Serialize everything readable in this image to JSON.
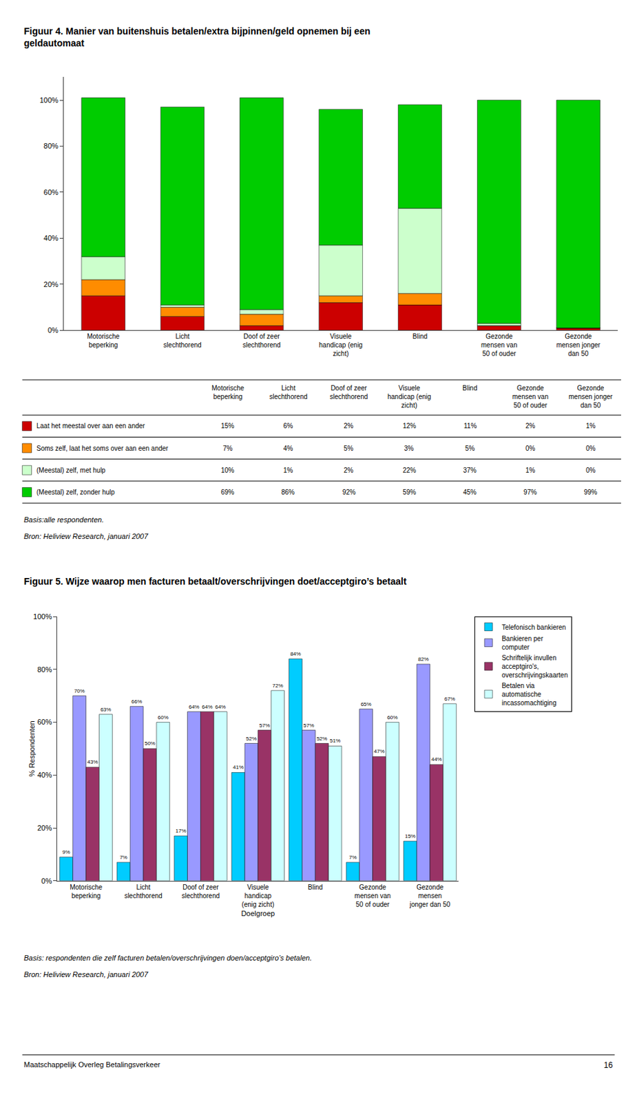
{
  "chart_data": [
    {
      "type": "bar",
      "title": "Figuur 4. Manier van buitenshuis betalen/extra bijpinnen/geld opnemen bij een\ngeldautomaat",
      "categories": [
        "Motorische\nbeperking",
        "Licht\nslechthorend",
        "Doof of zeer\nslechthorend",
        "Visuele\nhandicap (enig\nzicht)",
        "Blind",
        "Gezonde\nmensen van\n50 of ouder",
        "Gezonde\nmensen jonger\ndan 50"
      ],
      "series": [
        {
          "name": "Laat het meestal over aan een ander",
          "color": "#CC0000",
          "values": [
            15,
            6,
            2,
            12,
            11,
            2,
            1
          ],
          "value_labels": [
            "15%",
            "6%",
            "2%",
            "12%",
            "11%",
            "2%",
            "1%"
          ]
        },
        {
          "name": "Soms zelf, laat het soms over aan een ander",
          "color": "#FF8C00",
          "values": [
            7,
            4,
            5,
            3,
            5,
            0,
            0
          ],
          "value_labels": [
            "7%",
            "4%",
            "5%",
            "3%",
            "5%",
            "0%",
            "0%"
          ]
        },
        {
          "name": "(Meestal) zelf, met hulp",
          "color": "#CCFFCC",
          "values": [
            10,
            1,
            2,
            22,
            37,
            1,
            0
          ],
          "value_labels": [
            "10%",
            "1%",
            "2%",
            "22%",
            "37%",
            "1%",
            "0%"
          ]
        },
        {
          "name": "(Meestal) zelf, zonder hulp",
          "color": "#00CC00",
          "values": [
            69,
            86,
            92,
            59,
            45,
            97,
            99
          ],
          "value_labels": [
            "69%",
            "86%",
            "92%",
            "59%",
            "45%",
            "97%",
            "99%"
          ]
        }
      ],
      "stacked": true,
      "ylim": [
        0,
        110
      ],
      "yticks": [
        {
          "value": 0,
          "label": "0%"
        },
        {
          "value": 20,
          "label": "20%"
        },
        {
          "value": 40,
          "label": "40%"
        },
        {
          "value": 60,
          "label": "60%"
        },
        {
          "value": 80,
          "label": "80%"
        },
        {
          "value": 100,
          "label": "100%"
        }
      ],
      "grid": false,
      "annotations": [
        "Basis:alle respondenten.",
        "Bron: Heliview Research, januari 2007"
      ]
    },
    {
      "type": "bar",
      "title": "Figuur 5. Wijze waarop men facturen betaalt/overschrijvingen doet/acceptgiro’s betaalt",
      "categories": [
        "Motorische\nbeperking",
        "Licht\nslechthorend",
        "Doof of zeer\nslechthorend",
        "Visuele\nhandicap\n(enig zicht)",
        "Blind",
        "Gezonde\nmensen van\n50 of ouder",
        "Gezonde\nmensen\njonger dan 50"
      ],
      "series": [
        {
          "name": "Telefonisch bankieren",
          "color": "#00CCFF",
          "values": [
            9,
            7,
            17,
            41,
            84,
            7,
            15
          ],
          "value_labels": [
            "9%",
            "7%",
            "17%",
            "41%",
            "84%",
            "7%",
            "15%"
          ]
        },
        {
          "name": "Bankieren per\ncomputer",
          "color": "#9999FF",
          "values": [
            70,
            66,
            64,
            52,
            57,
            65,
            82
          ],
          "value_labels": [
            "70%",
            "66%",
            "64%",
            "52%",
            "57%",
            "65%",
            "82%"
          ]
        },
        {
          "name": "Schriftelijk invullen\nacceptgiro's,\noverschrijvingskaarten",
          "color": "#993366",
          "values": [
            43,
            50,
            64,
            57,
            52,
            47,
            44
          ],
          "value_labels": [
            "43%",
            "50%",
            "64%",
            "57%",
            "52%",
            "47%",
            "44%"
          ]
        },
        {
          "name": "Betalen via\nautomatische\nincassomachtiging",
          "color": "#CCFFFF",
          "values": [
            63,
            60,
            64,
            72,
            51,
            60,
            67
          ],
          "value_labels": [
            "63%",
            "60%",
            "64%",
            "72%",
            "51%",
            "60%",
            "67%"
          ]
        }
      ],
      "xlabel": "Doelgroep",
      "ylabel": "% Respondenten",
      "ylim": [
        0,
        100
      ],
      "yticks": [
        {
          "value": 0,
          "label": "0%"
        },
        {
          "value": 20,
          "label": "20%"
        },
        {
          "value": 40,
          "label": "40%"
        },
        {
          "value": 60,
          "label": "60%"
        },
        {
          "value": 80,
          "label": "80%"
        },
        {
          "value": 100,
          "label": "100%"
        }
      ],
      "grid": false,
      "data_labels": true,
      "legend": "upper right",
      "annotations": [
        "Basis: respondenten die zelf facturen betalen/overschrijvingen doen/acceptgiro’s betalen.",
        "Bron: Heliview Research, januari 2007",
        "Maatschappelijk Overleg Betalingsverkeer",
        "16"
      ]
    }
  ]
}
